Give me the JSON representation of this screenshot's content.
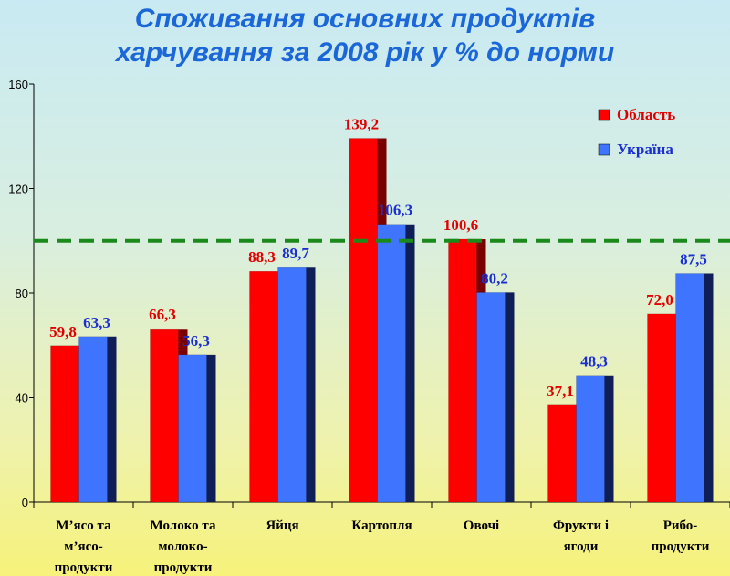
{
  "chart_data": {
    "type": "bar",
    "title": "Споживання основних продуктів харчування за 2008 рік  у % до норми",
    "title_lines": [
      "Споживання основних продуктів",
      "харчування за 2008 рік  у % до норми"
    ],
    "categories": [
      [
        "М’ясо та",
        "м’ясо-",
        "продукти"
      ],
      [
        "Молоко та",
        "молоко-",
        "продукти"
      ],
      [
        "Яйця"
      ],
      [
        "Картопля"
      ],
      [
        "Овочі"
      ],
      [
        "Фрукти і",
        "ягоди"
      ],
      [
        "Рибо-",
        "продукти"
      ]
    ],
    "series": [
      {
        "name": "Область",
        "color": "#ff0000",
        "side_color": "#7a0000",
        "values": [
          59.8,
          66.3,
          88.3,
          139.2,
          100.6,
          37.1,
          72.0
        ],
        "labels": [
          "59,8",
          "66,3",
          "88,3",
          "139,2",
          "100,6",
          "37,1",
          "72,0"
        ]
      },
      {
        "name": "Україна",
        "color": "#3f74ff",
        "side_color": "#101e58",
        "values": [
          63.3,
          56.3,
          89.7,
          106.3,
          80.2,
          48.3,
          87.5
        ],
        "labels": [
          "63,3",
          "56,3",
          "89,7",
          "106,3",
          "80,2",
          "48,3",
          "87,5"
        ]
      }
    ],
    "ylim": [
      0,
      160
    ],
    "yticks": [
      "0",
      "40",
      "80",
      "120",
      "160"
    ],
    "reference_line": {
      "value": 100,
      "color": "#1a8a1a",
      "style": "dashed"
    },
    "legend_position": "top-right",
    "label_colors": [
      "#e00000",
      "#1b2fd0"
    ],
    "xlabel": "",
    "ylabel": ""
  }
}
